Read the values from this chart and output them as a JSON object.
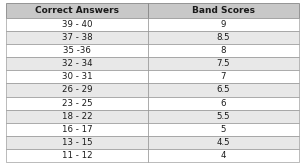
{
  "col1_header": "Correct Answers",
  "col2_header": "Band Scores",
  "rows": [
    [
      "39 - 40",
      "9"
    ],
    [
      "37 - 38",
      "8.5"
    ],
    [
      "35 -36",
      "8"
    ],
    [
      "32 - 34",
      "7.5"
    ],
    [
      "30 - 31",
      "7"
    ],
    [
      "26 - 29",
      "6.5"
    ],
    [
      "23 - 25",
      "6"
    ],
    [
      "18 - 22",
      "5.5"
    ],
    [
      "16 - 17",
      "5"
    ],
    [
      "13 - 15",
      "4.5"
    ],
    [
      "11 - 12",
      "4"
    ]
  ],
  "header_bg": "#c8c8c8",
  "row_bg_white": "#ffffff",
  "row_bg_gray": "#e8e8e8",
  "border_color": "#888888",
  "text_color": "#1a1a1a",
  "header_font_size": 6.5,
  "row_font_size": 6.2,
  "fig_width": 3.05,
  "fig_height": 1.65,
  "dpi": 100
}
